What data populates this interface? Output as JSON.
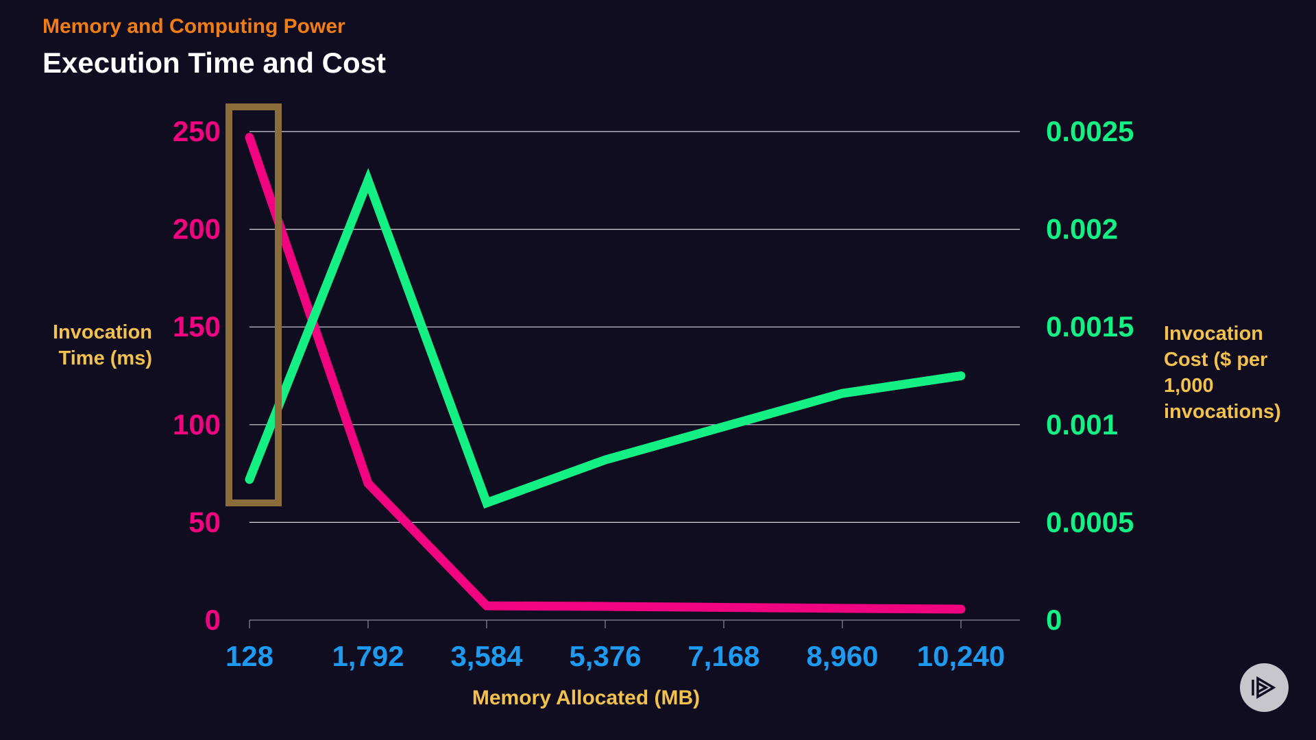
{
  "header": {
    "subtitle": "Memory and Computing Power",
    "title": "Execution Time and Cost"
  },
  "chart_data": {
    "type": "line",
    "categories": [
      "128",
      "1,792",
      "3,584",
      "5,376",
      "7,168",
      "8,960",
      "10,240"
    ],
    "xlabel": "Memory Allocated (MB)",
    "ylabel_left": "Invocation Time (ms)",
    "ylabel_right": "Invocation Cost ($ per 1,000 invocations)",
    "ylim_left": [
      0,
      250
    ],
    "ylim_right": [
      0,
      0.0025
    ],
    "yticks_left": [
      "0",
      "50",
      "100",
      "150",
      "200",
      "250"
    ],
    "yticks_right": [
      "0",
      "0.0005",
      "0.001",
      "0.0015",
      "0.002",
      "0.0025"
    ],
    "grid": true,
    "series": [
      {
        "axis": "left",
        "color": "#f0047f",
        "values": [
          247,
          70,
          7.3,
          7,
          6.5,
          6,
          5.6
        ]
      },
      {
        "axis": "right",
        "color": "#14f083",
        "values": [
          0.00072,
          0.00225,
          0.0006,
          0.00082,
          0.00099,
          0.00116,
          0.00125
        ]
      }
    ],
    "highlight": {
      "category": "128",
      "color": "#8a6d3b"
    },
    "colors": {
      "left_ticks": "#f0047f",
      "right_ticks": "#14f083",
      "x_ticks": "#1e9bf0",
      "labels": "#f2c14e"
    }
  }
}
